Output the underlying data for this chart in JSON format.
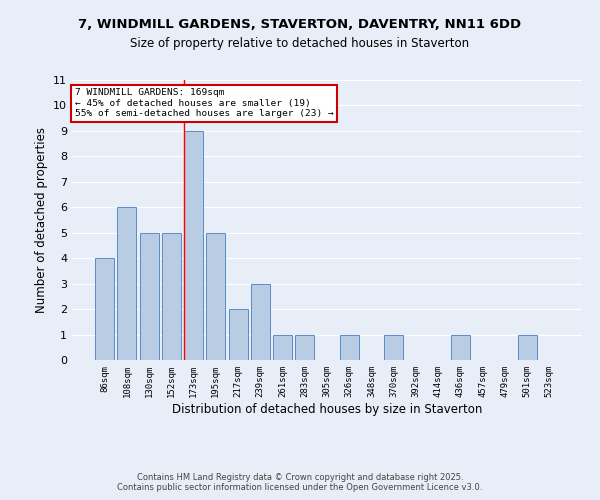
{
  "title1": "7, WINDMILL GARDENS, STAVERTON, DAVENTRY, NN11 6DD",
  "title2": "Size of property relative to detached houses in Staverton",
  "xlabel": "Distribution of detached houses by size in Staverton",
  "ylabel": "Number of detached properties",
  "categories": [
    "86sqm",
    "108sqm",
    "130sqm",
    "152sqm",
    "173sqm",
    "195sqm",
    "217sqm",
    "239sqm",
    "261sqm",
    "283sqm",
    "305sqm",
    "326sqm",
    "348sqm",
    "370sqm",
    "392sqm",
    "414sqm",
    "436sqm",
    "457sqm",
    "479sqm",
    "501sqm",
    "523sqm"
  ],
  "values": [
    4,
    6,
    5,
    5,
    9,
    5,
    2,
    3,
    1,
    1,
    0,
    1,
    0,
    1,
    0,
    0,
    1,
    0,
    0,
    1,
    0
  ],
  "bar_color": "#b8cce4",
  "bar_edgecolor": "#5b8cc8",
  "highlight_index": 4,
  "annotation_title": "7 WINDMILL GARDENS: 169sqm",
  "annotation_line1": "← 45% of detached houses are smaller (19)",
  "annotation_line2": "55% of semi-detached houses are larger (23) →",
  "annotation_box_color": "#ffffff",
  "annotation_box_edgecolor": "#cc0000",
  "ylim": [
    0,
    11
  ],
  "yticks": [
    0,
    1,
    2,
    3,
    4,
    5,
    6,
    7,
    8,
    9,
    10,
    11
  ],
  "background_color": "#e8eef8",
  "grid_color": "#ffffff",
  "footer": "Contains HM Land Registry data © Crown copyright and database right 2025.\nContains public sector information licensed under the Open Government Licence v3.0."
}
